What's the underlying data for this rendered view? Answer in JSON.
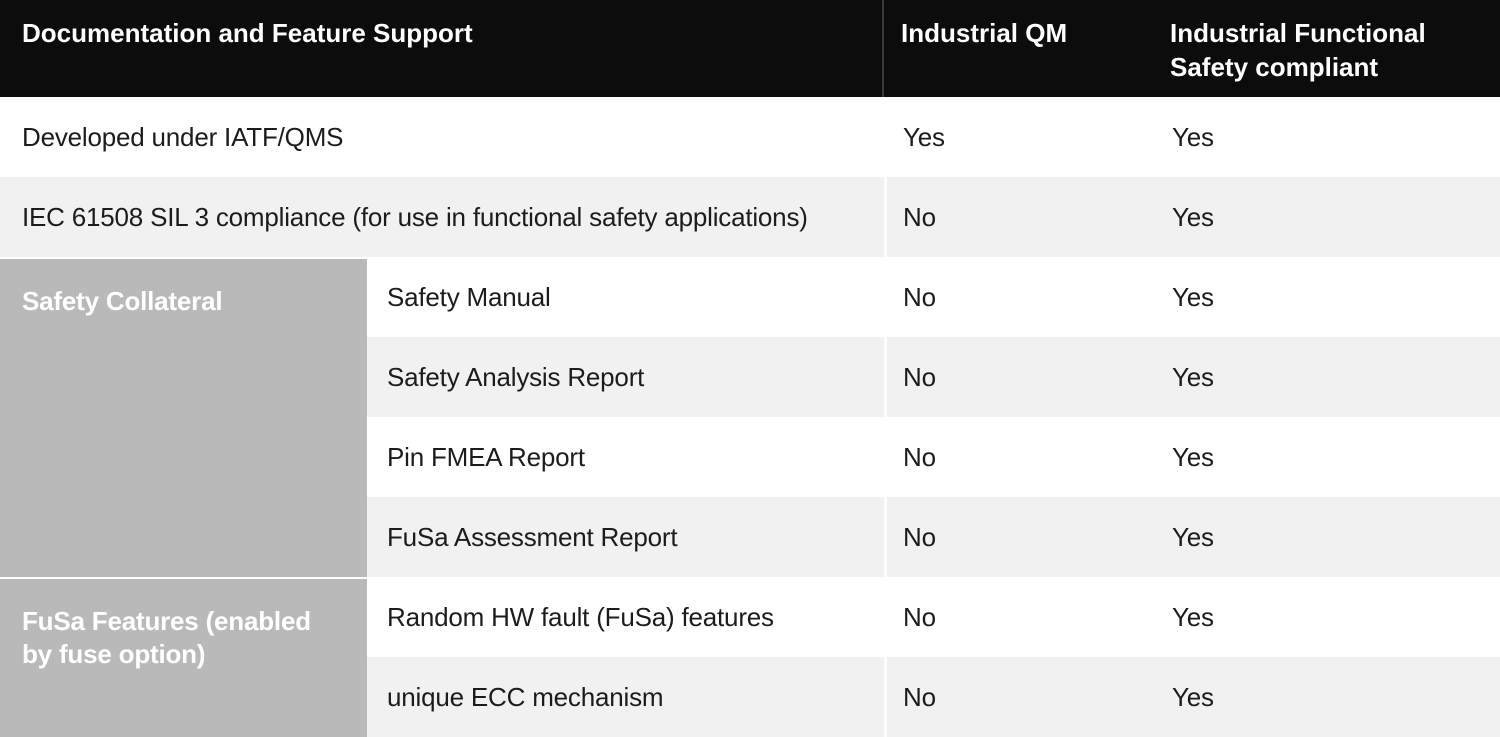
{
  "table": {
    "header": {
      "feature": "Documentation and Feature Support",
      "qm": "Industrial QM",
      "fs": "Industrial Functional Safety compliant"
    },
    "sections": [
      {
        "label": "Safety Collateral",
        "row_count": 4
      },
      {
        "label": "FuSa Features (enabled by fuse option)",
        "row_count": 2
      }
    ],
    "rows": [
      {
        "label": "Developed under IATF/QMS",
        "qm": "Yes",
        "fs": "Yes"
      },
      {
        "label": "IEC 61508 SIL 3 compliance (for use in functional safety applications)",
        "qm": "No",
        "fs": "Yes"
      },
      {
        "label": "Safety Manual",
        "qm": "No",
        "fs": "Yes"
      },
      {
        "label": "Safety Analysis Report",
        "qm": "No",
        "fs": "Yes"
      },
      {
        "label": "Pin FMEA Report",
        "qm": "No",
        "fs": "Yes"
      },
      {
        "label": "FuSa Assessment Report",
        "qm": "No",
        "fs": "Yes"
      },
      {
        "label": "Random HW fault (FuSa) features",
        "qm": "No",
        "fs": "Yes"
      },
      {
        "label": "unique ECC mechanism",
        "qm": "No",
        "fs": "Yes"
      }
    ],
    "colors": {
      "header_bg": "#0c0c0c",
      "header_divider": "#3a3a3a",
      "header_text": "#ffffff",
      "row_bg": "#ffffff",
      "row_alt_bg": "#f1f1f2",
      "section_bg": "#b9b9b9",
      "section_text": "#ffffff",
      "body_text": "#1c1c1e"
    }
  }
}
